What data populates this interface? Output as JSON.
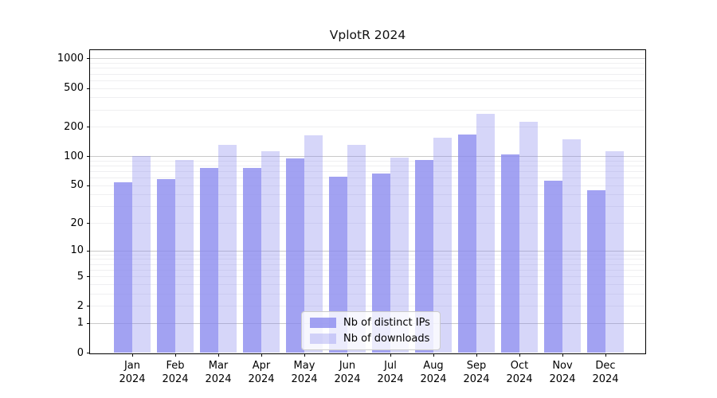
{
  "chart_data": {
    "type": "bar",
    "title": "VplotR 2024",
    "categories": [
      "Jan",
      "Feb",
      "Mar",
      "Apr",
      "May",
      "Jun",
      "Jul",
      "Aug",
      "Sep",
      "Oct",
      "Nov",
      "Dec"
    ],
    "year_label": "2024",
    "series": [
      {
        "name": "Nb of distinct IPs",
        "color": "#8888ee",
        "alpha": 0.78,
        "values": [
          54,
          58,
          76,
          76,
          94,
          61,
          66,
          91,
          166,
          104,
          56,
          44
        ]
      },
      {
        "name": "Nb of downloads",
        "color": "#8888ee",
        "alpha": 0.34,
        "values": [
          101,
          91,
          130,
          113,
          163,
          130,
          97,
          156,
          273,
          225,
          149,
          112
        ]
      }
    ],
    "y_axis": {
      "scale": "log1p",
      "ticks": [
        1000,
        500,
        200,
        100,
        50,
        20,
        10,
        5,
        2,
        1,
        0
      ],
      "ylim": [
        0,
        1200
      ]
    },
    "x_axis": {
      "tick_line2": "2024"
    },
    "grid": {
      "major_color": "#c9c9c9",
      "minor_color": "#efeff1",
      "enabled": true
    },
    "legend": {
      "position": "lower center"
    }
  }
}
